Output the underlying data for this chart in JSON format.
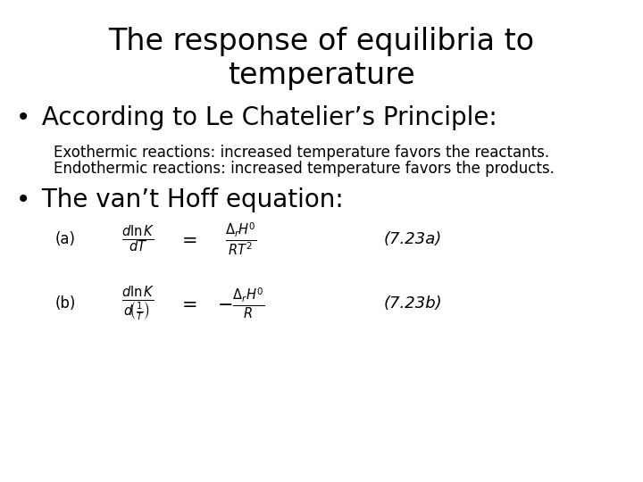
{
  "title_line1": "The response of equilibria to",
  "title_line2": "temperature",
  "bullet1_dot": "•",
  "bullet1_text": " According to Le Chatelier’s Principle:",
  "sub1": "Exothermic reactions: increased temperature favors the reactants.",
  "sub2": "Endothermic reactions: increased temperature favors the products.",
  "bullet2_dot": "•",
  "bullet2_text": " The van’t Hoff equation:",
  "label_a": "(a)",
  "label_b": "(b)",
  "ref_a": "(7.23a)",
  "ref_b": "(7.23b)",
  "bg_color": "#ffffff",
  "text_color": "#000000",
  "title_fontsize": 24,
  "bullet_fontsize": 20,
  "sub_fontsize": 12,
  "math_fontsize": 13,
  "label_fontsize": 12,
  "ref_fontsize": 13
}
